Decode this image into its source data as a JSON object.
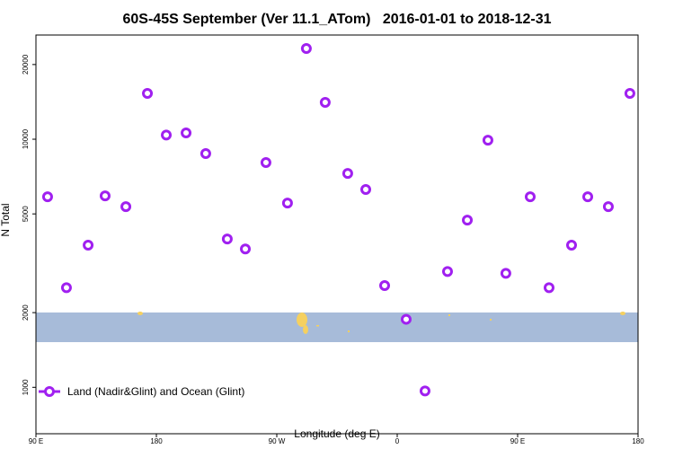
{
  "chart_data": {
    "type": "scatter",
    "title": "60S-45S September (Ver 11.1_ATom)   2016-01-01 to 2018-12-31",
    "xlabel": "Longitude (deg E)",
    "ylabel": "N Total",
    "log_y": true,
    "legend": "bottom-left",
    "xlim": [
      90,
      540
    ],
    "xticks": [
      {
        "value": 90,
        "label": "90 E"
      },
      180,
      {
        "value": 270,
        "label": "90 W"
      },
      {
        "value": 360,
        "label": "0"
      },
      {
        "value": 450,
        "label": "90 E"
      },
      {
        "value": 540,
        "label": "180"
      }
    ],
    "ylim": [
      650,
      26300
    ],
    "yticks": [
      1000,
      2000,
      5000,
      10000,
      20000
    ],
    "series": [
      {
        "name": "Land (Nadir&Glint) and Ocean (Glint)",
        "color": "#a020f0",
        "x": [
          98.7,
          112.8,
          129,
          141.7,
          157.2,
          173.3,
          187.4,
          202.2,
          216.9,
          233,
          246.5,
          261.9,
          278,
          292.1,
          306.2,
          323,
          336.5,
          350.6,
          366.7,
          380.8,
          397.6,
          412.4,
          427.8,
          441.2,
          459.4,
          473.5,
          490.3,
          502.4,
          517.8,
          533.9
        ],
        "values": [
          5860,
          2520,
          3740,
          5910,
          5350,
          15300,
          10400,
          10600,
          8750,
          3960,
          3610,
          8050,
          5530,
          23200,
          14080,
          7280,
          6270,
          2570,
          1880,
          967,
          2930,
          4720,
          9910,
          2880,
          5860,
          2520,
          3740,
          5860,
          5350,
          15300
        ]
      }
    ]
  }
}
